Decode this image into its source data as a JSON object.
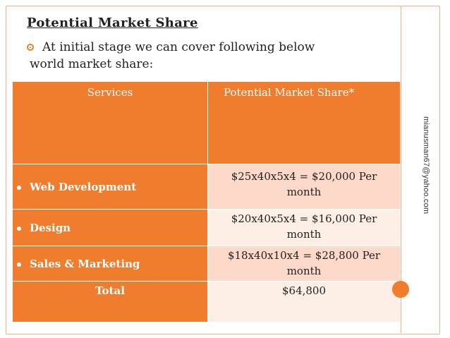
{
  "slide": {
    "title": "Potential Market Share",
    "bullet_line1": "At initial stage we can cover following below",
    "bullet_line2": "world market share:",
    "side_email": "mianusman67@yahoo.com"
  },
  "table": {
    "headers": [
      "Services",
      "Potential Market Share*"
    ],
    "rows": [
      {
        "service": "Web Development",
        "share_line1": "$25x40x5x4 = $20,000 Per",
        "share_line2": "month"
      },
      {
        "service": "Design",
        "share_line1": "$20x40x5x4 = $16,000 Per",
        "share_line2": "month"
      },
      {
        "service": "Sales & Marketing",
        "share_line1": "$18x40x10x4 = $28,800 Per",
        "share_line2": "month"
      }
    ],
    "total_label": "Total",
    "total_value": "$64,800"
  },
  "colors": {
    "accent": "#f07c2d",
    "row_light": "#fcd9c8",
    "row_lighter": "#fdeee6"
  }
}
